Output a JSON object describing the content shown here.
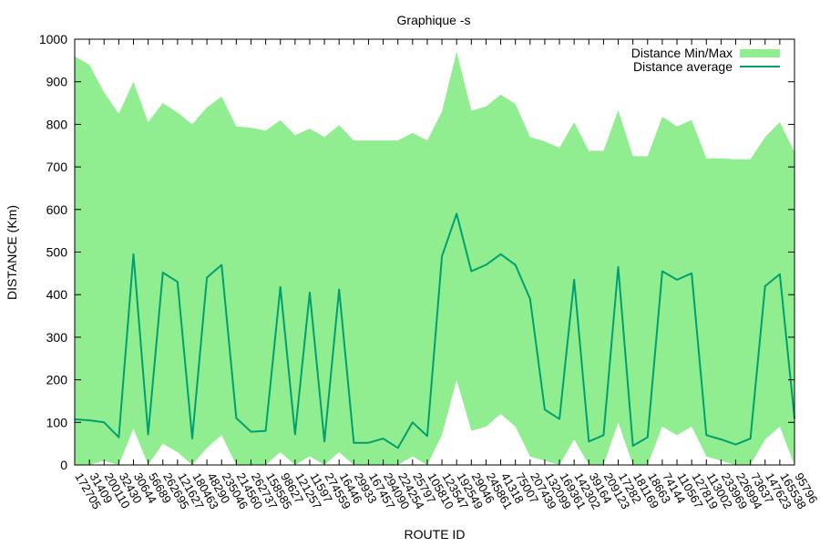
{
  "chart_data": {
    "type": "area",
    "title": "Graphique -s",
    "xlabel": "ROUTE ID",
    "ylabel": "DISTANCE (Km)",
    "ylim": [
      0,
      1000
    ],
    "yticks": [
      0,
      100,
      200,
      300,
      400,
      500,
      600,
      700,
      800,
      900,
      1000
    ],
    "grid": false,
    "legend_position": "top-right",
    "colors": {
      "minmax": "#90ee90",
      "average": "#009f6f",
      "axis": "#000000"
    },
    "categories": [
      "172705",
      "31409",
      "200110",
      "32430",
      "30644",
      "56689",
      "262695",
      "121627",
      "180463",
      "48290",
      "235046",
      "214560",
      "262737",
      "158585",
      "98627",
      "121257",
      "11597",
      "274559",
      "16446",
      "29933",
      "167457",
      "294090",
      "224254",
      "25797",
      "105810",
      "123547",
      "192549",
      "29046",
      "245861",
      "41318",
      "75007",
      "207439",
      "132099",
      "169361",
      "142302",
      "39164",
      "209123",
      "17282",
      "181169",
      "18663",
      "74144",
      "110567",
      "127819",
      "113002",
      "233969",
      "226994",
      "73637",
      "147623",
      "165538",
      "95796"
    ],
    "tick_labels": [
      "172705",
      "31409",
      "200110",
      "32430",
      "30644",
      "56689",
      "262695",
      "121627",
      "180463",
      "48290",
      "235046",
      "214560",
      "262737",
      "158585",
      "98627",
      "121257",
      "11597",
      "274559",
      "16446",
      "29933",
      "167457",
      "294090",
      "224254",
      "25797",
      "105810",
      "123547",
      "192549",
      "29046",
      "245861",
      "41318",
      "75007",
      "207439",
      "132099",
      "169361",
      "142302",
      "39164",
      "209123",
      "17282",
      "181169",
      "18663",
      "74144",
      "110567",
      "127819",
      "113002",
      "233969",
      "226994",
      "73637",
      "147623",
      "165538",
      "95796"
    ],
    "series": [
      {
        "name": "Distance Min/Max",
        "kind": "band",
        "min": [
          0,
          0,
          10,
          0,
          85,
          0,
          50,
          30,
          0,
          40,
          70,
          0,
          0,
          0,
          30,
          0,
          20,
          0,
          30,
          0,
          0,
          0,
          0,
          20,
          0,
          70,
          200,
          80,
          90,
          120,
          90,
          20,
          10,
          0,
          60,
          0,
          0,
          100,
          0,
          0,
          90,
          70,
          90,
          20,
          10,
          0,
          0,
          60,
          90,
          0
        ],
        "max": [
          960,
          940,
          875,
          825,
          900,
          805,
          850,
          828,
          800,
          840,
          865,
          795,
          792,
          785,
          810,
          775,
          790,
          770,
          798,
          762,
          762,
          762,
          762,
          780,
          762,
          830,
          970,
          832,
          842,
          870,
          848,
          770,
          760,
          745,
          805,
          738,
          738,
          833,
          725,
          725,
          818,
          795,
          810,
          720,
          720,
          718,
          718,
          770,
          805,
          735
        ]
      },
      {
        "name": "Distance average",
        "kind": "line",
        "values": [
          107,
          105,
          100,
          65,
          495,
          72,
          452,
          430,
          62,
          440,
          470,
          110,
          78,
          80,
          418,
          72,
          405,
          55,
          412,
          52,
          52,
          62,
          40,
          100,
          68,
          490,
          590,
          455,
          470,
          495,
          470,
          390,
          130,
          108,
          435,
          55,
          70,
          465,
          45,
          65,
          455,
          435,
          450,
          70,
          60,
          48,
          62,
          420,
          448,
          110
        ]
      }
    ]
  }
}
